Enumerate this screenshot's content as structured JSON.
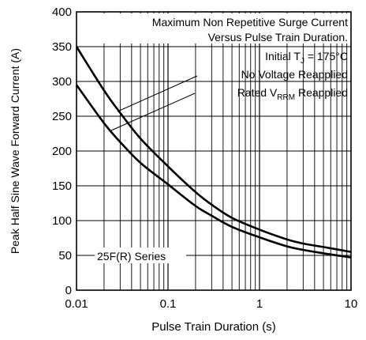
{
  "chart_data": {
    "type": "line",
    "title": "",
    "xlabel": "Pulse Train Duration (s)",
    "ylabel": "Peak Half Sine Wave Forward Current (A)",
    "xscale": "log",
    "xlim": [
      0.01,
      10
    ],
    "ylim": [
      0,
      400
    ],
    "grid": true,
    "x_ticks": [
      "0.01",
      "0.1",
      "1",
      "10"
    ],
    "y_ticks": [
      "0",
      "50",
      "100",
      "150",
      "200",
      "250",
      "300",
      "350",
      "400"
    ],
    "annotations": {
      "line1": "Maximum Non Repetitive Surge Current",
      "line2": "Versus Pulse Train Duration.",
      "line3_pre": "Initial T",
      "line3_sub": "J",
      "line3_post": " = 175°C",
      "line4": "No Voltage Reapplied",
      "line5_pre": "Rated V",
      "line5_sub": "RRM",
      "line5_post": " Reapplied",
      "series_label": "25F(R) Series"
    },
    "series": [
      {
        "x": [
          0.01,
          0.02,
          0.03,
          0.05,
          0.1,
          0.2,
          0.3,
          0.5,
          1,
          2,
          3,
          5,
          10
        ],
        "y": [
          350,
          287,
          255,
          218,
          178,
          141,
          123,
          104,
          87,
          73,
          67,
          62,
          55
        ]
      },
      {
        "x": [
          0.01,
          0.02,
          0.03,
          0.05,
          0.1,
          0.2,
          0.3,
          0.5,
          1,
          2,
          3,
          5,
          10
        ],
        "y": [
          295,
          240,
          213,
          183,
          152,
          121,
          107,
          91,
          76,
          63,
          58,
          53,
          47
        ]
      }
    ]
  }
}
